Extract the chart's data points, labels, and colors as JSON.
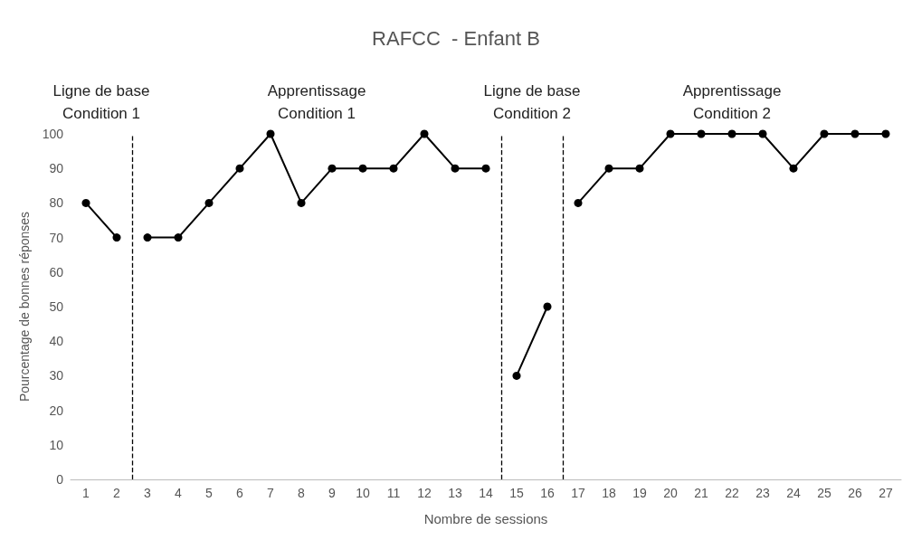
{
  "chart_data": {
    "type": "line",
    "title": "RAFCC  - Enfant B",
    "xlabel": "Nombre de sessions",
    "ylabel": "Pourcentage de bonnes réponses",
    "series": [
      {
        "color": "#000000",
        "x": [
          1,
          2
        ],
        "values": [
          80,
          70
        ]
      },
      {
        "color": "#000000",
        "x": [
          3,
          4,
          5,
          6,
          7,
          8,
          9,
          10,
          11,
          12,
          13,
          14
        ],
        "values": [
          70,
          70,
          80,
          90,
          100,
          80,
          90,
          90,
          90,
          100,
          90,
          90
        ]
      },
      {
        "color": "#000000",
        "x": [
          15,
          16
        ],
        "values": [
          30,
          50
        ]
      },
      {
        "color": "#000000",
        "x": [
          17,
          18,
          19,
          20,
          21,
          22,
          23,
          24,
          25,
          26,
          27
        ],
        "values": [
          80,
          90,
          90,
          100,
          100,
          100,
          100,
          90,
          100,
          100,
          100
        ]
      }
    ],
    "xlim": [
      0.5,
      27.5
    ],
    "xticks": [
      1,
      2,
      3,
      4,
      5,
      6,
      7,
      8,
      9,
      10,
      11,
      12,
      13,
      14,
      15,
      16,
      17,
      18,
      19,
      20,
      21,
      22,
      23,
      24,
      25,
      26,
      27
    ],
    "ylim": [
      0,
      100
    ],
    "yticks": [
      0,
      10,
      20,
      30,
      40,
      50,
      60,
      70,
      80,
      90,
      100
    ],
    "ref_lines": [
      {
        "axis": "x",
        "value": 2.5,
        "color": "#000000",
        "line_style": "dashed"
      },
      {
        "axis": "x",
        "value": 14.5,
        "color": "#000000",
        "line_style": "dashed"
      },
      {
        "axis": "x",
        "value": 16.5,
        "color": "#000000",
        "line_style": "dashed"
      }
    ],
    "annotations": [
      "Ligne de base\nCondition 1",
      "Apprentissage\nCondition 1",
      "Ligne de base\nCondition 2",
      "Apprentissage\nCondition 2"
    ],
    "grid": false,
    "marker": "circle",
    "line_style": "solid"
  }
}
